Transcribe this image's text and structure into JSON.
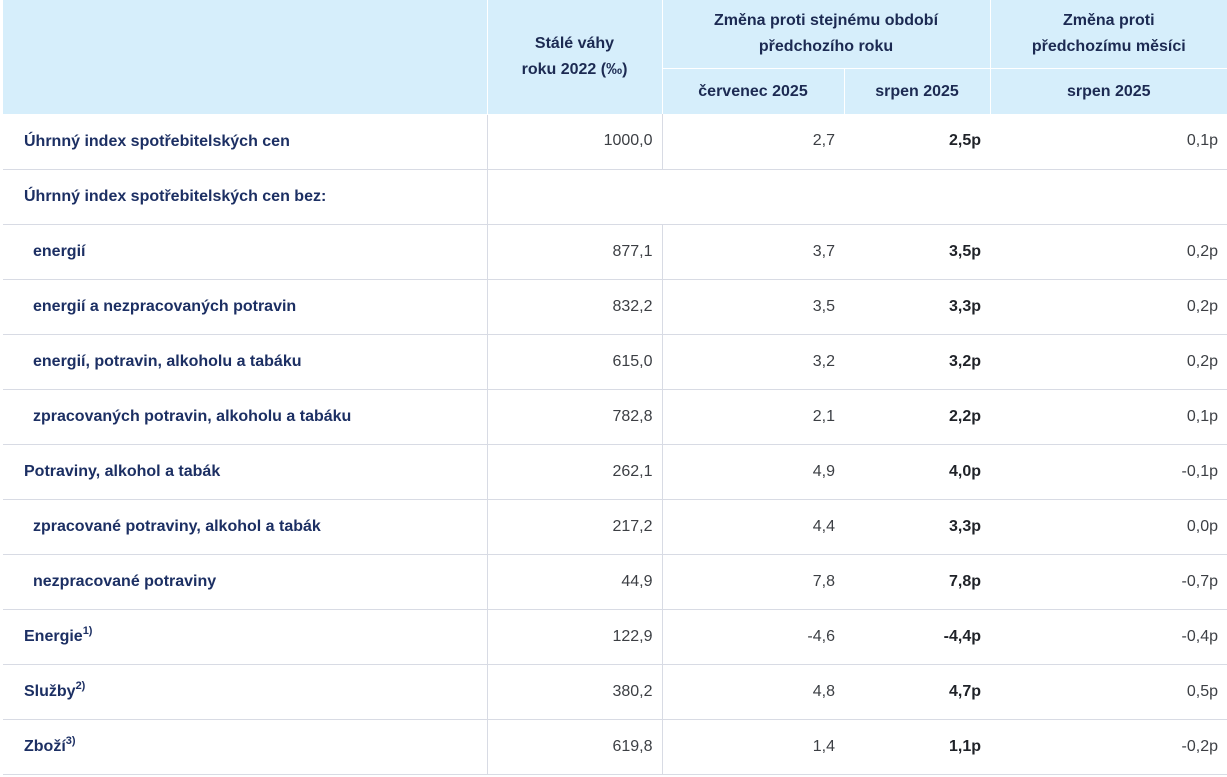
{
  "header": {
    "weights": [
      "Stálé váhy",
      "roku 2022 (‰)"
    ],
    "yoy_group": [
      "Změna proti stejnému období",
      "předchozího roku"
    ],
    "mom_group": [
      "Změna proti",
      "předchozímu měsíci"
    ],
    "col_jul": "červenec 2025",
    "col_aug": "srpen 2025",
    "col_mom": "srpen 2025"
  },
  "rows": [
    {
      "label": "Úhrnný index spotřebitelských cen",
      "sup": "",
      "weight": "1000,0",
      "jul": "2,7",
      "aug": "2,5p",
      "mom": "0,1p"
    },
    {
      "label": "Úhrnný index spotřebitelských cen bez:",
      "sup": "",
      "weight": "",
      "jul": "",
      "aug": "",
      "mom": ""
    },
    {
      "label": "energií",
      "sup": "",
      "weight": "877,1",
      "jul": "3,7",
      "aug": "3,5p",
      "mom": "0,2p"
    },
    {
      "label": "energií a nezpracovaných potravin",
      "sup": "",
      "weight": "832,2",
      "jul": "3,5",
      "aug": "3,3p",
      "mom": "0,2p"
    },
    {
      "label": "energií, potravin, alkoholu a tabáku",
      "sup": "",
      "weight": "615,0",
      "jul": "3,2",
      "aug": "3,2p",
      "mom": "0,2p"
    },
    {
      "label": "zpracovaných potravin, alkoholu a tabáku",
      "sup": "",
      "weight": "782,8",
      "jul": "2,1",
      "aug": "2,2p",
      "mom": "0,1p"
    },
    {
      "label": "Potraviny, alkohol a tabák",
      "sup": "",
      "weight": "262,1",
      "jul": "4,9",
      "aug": "4,0p",
      "mom": "-0,1p"
    },
    {
      "label": "zpracované potraviny, alkohol a tabák",
      "sup": "",
      "weight": "217,2",
      "jul": "4,4",
      "aug": "3,3p",
      "mom": "0,0p"
    },
    {
      "label": "nezpracované potraviny",
      "sup": "",
      "weight": "44,9",
      "jul": "7,8",
      "aug": "7,8p",
      "mom": "-0,7p"
    },
    {
      "label": "Energie",
      "sup": "1)",
      "weight": "122,9",
      "jul": "-4,6",
      "aug": "-4,4p",
      "mom": "-0,4p"
    },
    {
      "label": "Služby",
      "sup": "2)",
      "weight": "380,2",
      "jul": "4,8",
      "aug": "4,7p",
      "mom": "0,5p"
    },
    {
      "label": "Zboží",
      "sup": "3)",
      "weight": "619,8",
      "jul": "1,4",
      "aug": "1,1p",
      "mom": "-0,2p"
    }
  ]
}
